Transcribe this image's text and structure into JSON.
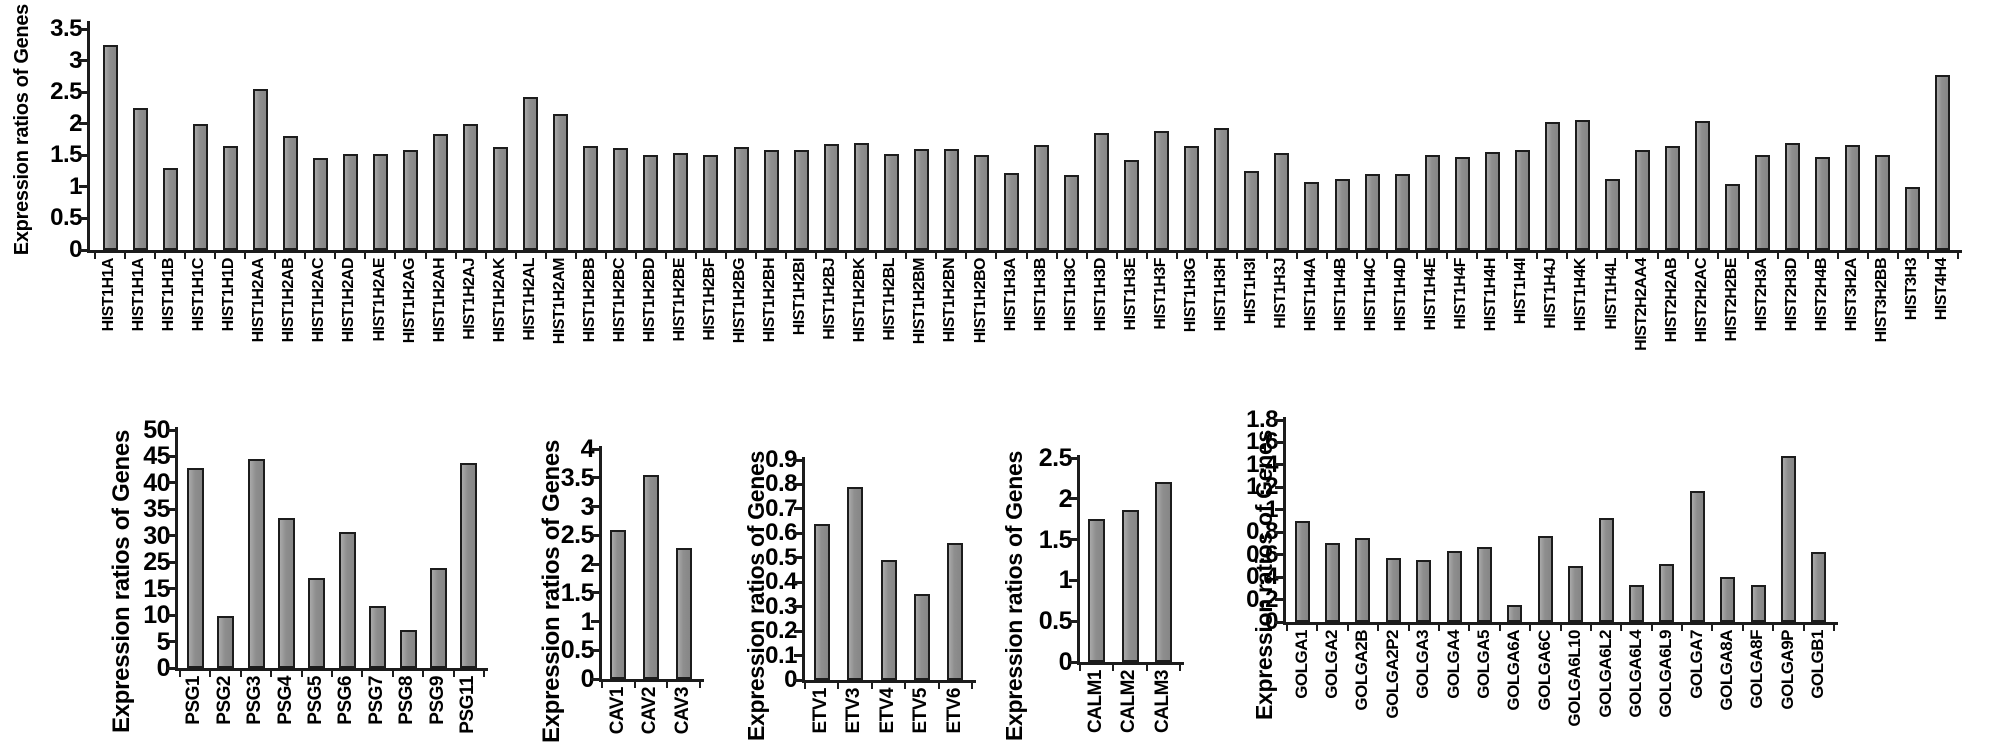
{
  "figure": {
    "background": "#ffffff",
    "bar_fill": "#8e8e8e",
    "bar_border": "#1c1c1c",
    "axis_color": "#1c1c1c",
    "text_color": "#000000",
    "y_axis_title": "Expression ratios of Genes"
  },
  "chart_data": [
    {
      "id": "hist",
      "type": "bar",
      "title": "",
      "ylabel": "Expression ratios of Genes",
      "xlabel": "",
      "ylim": [
        0,
        3.5
      ],
      "grid": false,
      "legend": "none",
      "yticks": [
        "3.5",
        "3",
        "2.5",
        "2",
        "1.5",
        "1",
        "0.5",
        "0"
      ],
      "categories": [
        "HIST1H1A",
        "HIST1H1A",
        "HIST1H1B",
        "HIST1H1C",
        "HIST1H1D",
        "HIST1H2AA",
        "HIST1H2AB",
        "HIST1H2AC",
        "HIST1H2AD",
        "HIST1H2AE",
        "HIST1H2AG",
        "HIST1H2AH",
        "HIST1H2AJ",
        "HIST1H2AK",
        "HIST1H2AL",
        "HIST1H2AM",
        "HIST1H2BB",
        "HIST1H2BC",
        "HIST1H2BD",
        "HIST1H2BE",
        "HIST1H2BF",
        "HIST1H2BG",
        "HIST1H2BH",
        "HIST1H2BI",
        "HIST1H2BJ",
        "HIST1H2BK",
        "HIST1H2BL",
        "HIST1H2BM",
        "HIST1H2BN",
        "HIST1H2BO",
        "HIST1H3A",
        "HIST1H3B",
        "HIST1H3C",
        "HIST1H3D",
        "HIST1H3E",
        "HIST1H3F",
        "HIST1H3G",
        "HIST1H3H",
        "HIST1H3I",
        "HIST1H3J",
        "HIST1H4A",
        "HIST1H4B",
        "HIST1H4C",
        "HIST1H4D",
        "HIST1H4E",
        "HIST1H4F",
        "HIST1H4H",
        "HIST1H4I",
        "HIST1H4J",
        "HIST1H4K",
        "HIST1H4L",
        "HIST2H2AA4",
        "HIST2H2AB",
        "HIST2H2AC",
        "HIST2H2BE",
        "HIST2H3A",
        "HIST2H3D",
        "HIST2H4B",
        "HIST3H2A",
        "HIST3H2BB",
        "HIST3H3",
        "HIST4H4"
      ],
      "values": [
        3.25,
        2.25,
        1.3,
        2.0,
        1.65,
        2.55,
        1.8,
        1.45,
        1.52,
        1.52,
        1.58,
        1.83,
        2.0,
        1.63,
        2.43,
        2.15,
        1.65,
        1.62,
        1.5,
        1.53,
        1.5,
        1.63,
        1.58,
        1.58,
        1.68,
        1.7,
        1.52,
        1.6,
        1.6,
        1.5,
        1.22,
        1.67,
        1.18,
        1.85,
        1.43,
        1.88,
        1.65,
        1.93,
        1.25,
        1.53,
        1.08,
        1.12,
        1.2,
        1.2,
        1.5,
        1.47,
        1.55,
        1.58,
        2.02,
        2.06,
        1.13,
        1.58,
        1.65,
        2.04,
        1.05,
        1.5,
        1.7,
        1.47,
        1.67,
        1.5,
        1.0,
        2.77
      ]
    },
    {
      "id": "psg",
      "type": "bar",
      "title": "",
      "ylabel": "Expression ratios of Genes",
      "xlabel": "",
      "ylim": [
        0,
        50
      ],
      "grid": false,
      "legend": "none",
      "yticks": [
        "50",
        "45",
        "40",
        "35",
        "30",
        "25",
        "15",
        "10",
        "5",
        "0"
      ],
      "categories": [
        "PSG1",
        "PSG2",
        "PSG3",
        "PSG4",
        "PSG5",
        "PSG6",
        "PSG7",
        "PSG8",
        "PSG9",
        "PSG11"
      ],
      "values": [
        42,
        11,
        44,
        31.5,
        19,
        28.5,
        13,
        8,
        21,
        43
      ]
    },
    {
      "id": "cav",
      "type": "bar",
      "title": "",
      "ylabel": "Expression ratios of Genes",
      "xlabel": "",
      "ylim": [
        0,
        4
      ],
      "grid": false,
      "legend": "none",
      "yticks": [
        "4",
        "3.5",
        "3",
        "2.5",
        "2",
        "1.5",
        "1",
        "0.5",
        "0"
      ],
      "categories": [
        "CAV1",
        "CAV2",
        "CAV3"
      ],
      "values": [
        2.6,
        3.55,
        2.27
      ]
    },
    {
      "id": "etv",
      "type": "bar",
      "title": "",
      "ylabel": "Expression ratios of Genes",
      "xlabel": "",
      "ylim": [
        0,
        0.9
      ],
      "grid": false,
      "legend": "none",
      "yticks": [
        "0.9",
        "0.8",
        "0.7",
        "0.6",
        "0.5",
        "0.4",
        "0.3",
        "0.2",
        "0.1",
        "0"
      ],
      "categories": [
        "ETV1",
        "ETV3",
        "ETV4",
        "ETV5",
        "ETV6"
      ],
      "values": [
        0.64,
        0.79,
        0.49,
        0.35,
        0.56
      ]
    },
    {
      "id": "calm",
      "type": "bar",
      "title": "",
      "ylabel": "Expression ratios of Genes",
      "xlabel": "",
      "ylim": [
        0,
        2.5
      ],
      "grid": false,
      "legend": "none",
      "yticks": [
        "2.5",
        "2",
        "1.5",
        "1",
        "0.5",
        "0"
      ],
      "categories": [
        "CALM1",
        "CALM2",
        "CALM3"
      ],
      "values": [
        1.75,
        1.86,
        2.2
      ]
    },
    {
      "id": "golga",
      "type": "bar",
      "title": "",
      "ylabel": "Expression ratios of Genes",
      "xlabel": "",
      "ylim": [
        0,
        1.8
      ],
      "grid": false,
      "legend": "none",
      "yticks": [
        "1.8",
        "1.6",
        "1.4",
        "1.2",
        "1",
        "0.8",
        "0.6",
        "0.4",
        "0.2",
        "0"
      ],
      "categories": [
        "GOLGA1",
        "GOLGA2",
        "GOLGA2B",
        "GOLGA2P2",
        "GOLGA3",
        "GOLGA4",
        "GOLGA5",
        "GOLGA6A",
        "GOLGA6C",
        "GOLGA6L10",
        "GOLGA6L2",
        "GOLGA6L4",
        "GOLGA6L9",
        "GOLGA7",
        "GOLGA8A",
        "GOLGA8F",
        "GOLGA9P",
        "GOLGB1"
      ],
      "values": [
        0.9,
        0.7,
        0.75,
        0.57,
        0.55,
        0.63,
        0.67,
        0.15,
        0.77,
        0.5,
        0.93,
        0.33,
        0.52,
        1.17,
        0.4,
        0.33,
        1.48,
        0.62
      ]
    }
  ]
}
